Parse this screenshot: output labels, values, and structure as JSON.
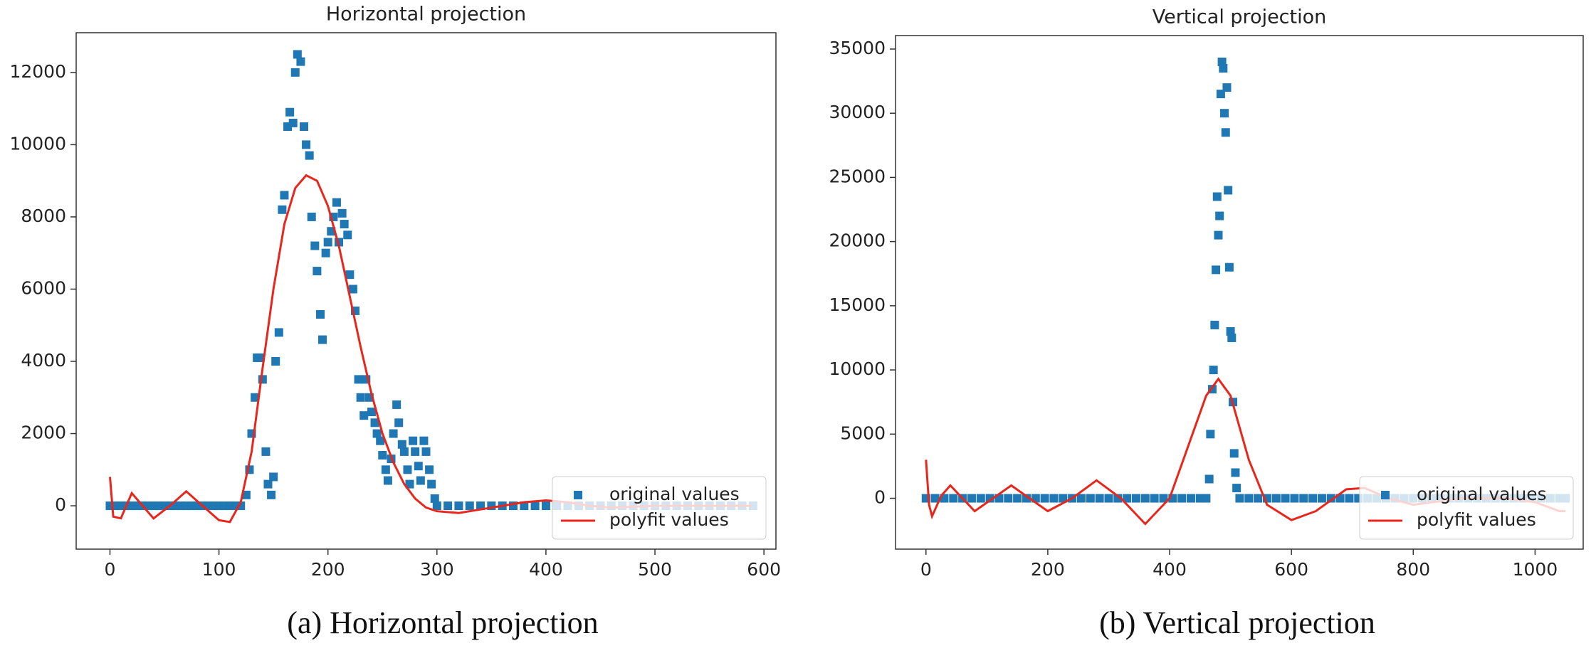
{
  "chart_data": [
    {
      "type": "scatter",
      "title": "Horizontal projection",
      "caption": "(a) Horizontal projection",
      "xlim": [
        -31,
        611
      ],
      "ylim": [
        -1200,
        13100
      ],
      "xticks": [
        0,
        100,
        200,
        300,
        400,
        500,
        600
      ],
      "yticks": [
        0,
        2000,
        4000,
        6000,
        8000,
        10000,
        12000
      ],
      "legend": "lower right",
      "series": [
        {
          "name": "original values",
          "type": "scatter",
          "color": "#1f77b4",
          "x": [
            0,
            5,
            10,
            15,
            20,
            25,
            30,
            35,
            40,
            45,
            50,
            55,
            60,
            65,
            70,
            75,
            80,
            85,
            90,
            95,
            100,
            105,
            110,
            115,
            120,
            125,
            128,
            130,
            133,
            135,
            138,
            140,
            143,
            145,
            148,
            150,
            152,
            155,
            158,
            160,
            163,
            165,
            168,
            170,
            172,
            175,
            178,
            180,
            183,
            185,
            188,
            190,
            193,
            195,
            198,
            200,
            203,
            205,
            208,
            210,
            213,
            215,
            218,
            220,
            223,
            225,
            228,
            230,
            233,
            235,
            238,
            240,
            243,
            245,
            248,
            250,
            253,
            255,
            258,
            260,
            263,
            265,
            268,
            270,
            273,
            275,
            278,
            280,
            283,
            285,
            288,
            290,
            293,
            295,
            298,
            300,
            310,
            320,
            330,
            340,
            350,
            360,
            370,
            380,
            390,
            400,
            410,
            420,
            430,
            440,
            450,
            460,
            470,
            480,
            490,
            500,
            510,
            520,
            530,
            540,
            550,
            560,
            570,
            580,
            590
          ],
          "values": [
            0,
            0,
            0,
            0,
            0,
            0,
            0,
            0,
            0,
            0,
            0,
            0,
            0,
            0,
            0,
            0,
            0,
            0,
            0,
            0,
            0,
            0,
            0,
            0,
            0,
            300,
            1000,
            2000,
            3000,
            4100,
            4100,
            3500,
            1500,
            600,
            300,
            800,
            4000,
            4800,
            8200,
            8600,
            10500,
            10900,
            10600,
            12000,
            12500,
            12300,
            10500,
            10000,
            9700,
            8000,
            7200,
            6500,
            5300,
            4600,
            7000,
            7300,
            7600,
            8000,
            8400,
            7300,
            8100,
            7800,
            7500,
            6400,
            6000,
            5400,
            3500,
            3000,
            2500,
            3500,
            3000,
            2600,
            2300,
            2000,
            1800,
            1400,
            1000,
            700,
            1300,
            2000,
            2800,
            2300,
            1700,
            1500,
            1000,
            600,
            1800,
            1500,
            1100,
            700,
            1800,
            1500,
            1000,
            600,
            200,
            0,
            0,
            0,
            0,
            0,
            0,
            0,
            0,
            0,
            0,
            0,
            0,
            0,
            0,
            0,
            0,
            0,
            0,
            0,
            0,
            0,
            0,
            0,
            0,
            0,
            0,
            0,
            0,
            0,
            0
          ]
        },
        {
          "name": "polyfit values",
          "type": "line",
          "color": "#e8261c",
          "x": [
            0,
            3,
            10,
            20,
            30,
            40,
            55,
            70,
            85,
            100,
            110,
            120,
            130,
            140,
            150,
            160,
            170,
            180,
            190,
            200,
            210,
            220,
            230,
            240,
            250,
            260,
            270,
            280,
            290,
            300,
            320,
            340,
            360,
            380,
            400,
            420,
            440,
            460,
            500,
            550,
            589
          ],
          "values": [
            800,
            -300,
            -350,
            350,
            0,
            -350,
            0,
            400,
            0,
            -400,
            -450,
            100,
            1500,
            3800,
            6000,
            7800,
            8800,
            9150,
            9000,
            8300,
            7200,
            5800,
            4400,
            3100,
            2000,
            1200,
            600,
            200,
            -50,
            -150,
            -200,
            -100,
            0,
            100,
            150,
            100,
            0,
            -50,
            0,
            0,
            0
          ]
        }
      ]
    },
    {
      "type": "scatter",
      "title": "Vertical projection",
      "caption": "(b) Vertical projection",
      "xlim": [
        -50,
        1079
      ],
      "ylim": [
        -3960,
        36050
      ],
      "xticks": [
        0,
        200,
        400,
        600,
        800,
        1000
      ],
      "yticks": [
        0,
        5000,
        10000,
        15000,
        20000,
        25000,
        30000,
        35000
      ],
      "legend": "lower right",
      "series": [
        {
          "name": "original values",
          "type": "scatter",
          "color": "#1f77b4",
          "x": [
            0,
            15,
            30,
            45,
            60,
            75,
            90,
            105,
            120,
            135,
            150,
            165,
            180,
            195,
            210,
            225,
            240,
            255,
            270,
            285,
            300,
            315,
            330,
            345,
            360,
            375,
            390,
            405,
            420,
            435,
            450,
            460,
            465,
            467,
            470,
            472,
            474,
            476,
            478,
            480,
            482,
            484,
            486,
            488,
            490,
            492,
            494,
            496,
            498,
            500,
            502,
            504,
            506,
            508,
            510,
            515,
            530,
            545,
            560,
            575,
            590,
            605,
            620,
            635,
            650,
            665,
            680,
            695,
            710,
            725,
            740,
            755,
            770,
            785,
            800,
            815,
            830,
            845,
            860,
            875,
            890,
            905,
            920,
            935,
            950,
            965,
            980,
            995,
            1010,
            1025,
            1040,
            1050
          ],
          "values": [
            0,
            0,
            0,
            0,
            0,
            0,
            0,
            0,
            0,
            0,
            0,
            0,
            0,
            0,
            0,
            0,
            0,
            0,
            0,
            0,
            0,
            0,
            0,
            0,
            0,
            0,
            0,
            0,
            0,
            0,
            0,
            0,
            1500,
            5000,
            8500,
            10000,
            13500,
            17800,
            23500,
            20500,
            22000,
            31500,
            34000,
            33500,
            30000,
            28500,
            32000,
            24000,
            18000,
            13000,
            12500,
            7500,
            3500,
            2000,
            800,
            0,
            0,
            0,
            0,
            0,
            0,
            0,
            0,
            0,
            0,
            0,
            0,
            0,
            0,
            0,
            0,
            0,
            0,
            0,
            0,
            0,
            0,
            0,
            0,
            0,
            0,
            0,
            0,
            0,
            0,
            0,
            0,
            0,
            0,
            0,
            0,
            0
          ]
        },
        {
          "name": "polyfit values",
          "type": "line",
          "color": "#e8261c",
          "x": [
            0,
            5,
            10,
            25,
            40,
            60,
            80,
            110,
            140,
            170,
            200,
            240,
            280,
            320,
            360,
            400,
            430,
            460,
            480,
            500,
            530,
            560,
            600,
            640,
            690,
            720,
            760,
            800,
            880,
            950,
            1000,
            1040,
            1050
          ],
          "values": [
            3000,
            -500,
            -1400,
            200,
            1000,
            0,
            -1000,
            0,
            1000,
            0,
            -1000,
            0,
            1400,
            0,
            -2000,
            0,
            4000,
            8000,
            9300,
            8000,
            3000,
            -500,
            -1700,
            -1000,
            700,
            800,
            0,
            -500,
            0,
            0,
            -300,
            -1000,
            -1000
          ]
        }
      ]
    }
  ]
}
